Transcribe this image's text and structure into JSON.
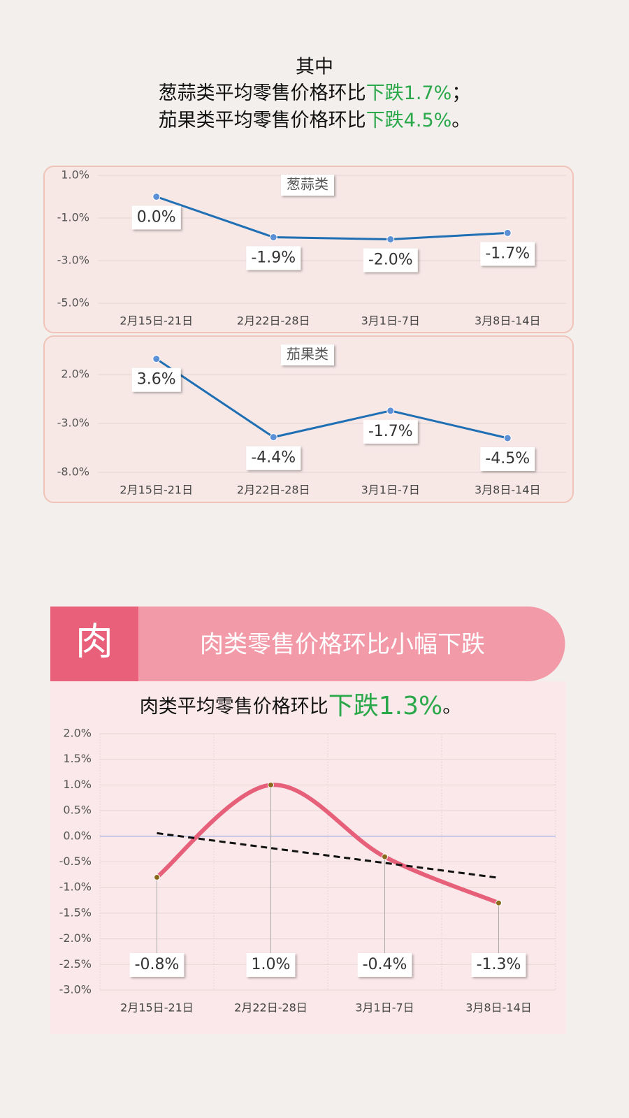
{
  "header": {
    "line0": "其中",
    "line1": [
      "葱蒜类平均零售价格环比",
      "下跌1.7%",
      "；"
    ],
    "line2": [
      "茄果类平均零售价格环比",
      "下跌4.5%",
      "。"
    ]
  },
  "banner": {
    "badge": "肉",
    "title": "肉类零售价格环比小幅下跌"
  },
  "subtitle": [
    "肉类平均零售价格环比",
    "下跌1.3%",
    "。"
  ],
  "chart_data": [
    {
      "type": "line",
      "title": "葱蒜类",
      "categories": [
        "2月15日-21日",
        "2月22日-28日",
        "3月1日-7日",
        "3月8日-14日"
      ],
      "values": [
        0.0,
        -1.9,
        -2.0,
        -1.7
      ],
      "value_labels": [
        "0.0%",
        "-1.9%",
        "-2.0%",
        "-1.7%"
      ],
      "color": "#1f6fb4",
      "ylim": [
        -5,
        1
      ],
      "yticks": [
        {
          "value": 1,
          "label": "1.0%"
        },
        {
          "value": -1,
          "label": "-1.0%"
        },
        {
          "value": -3,
          "label": "-3.0%"
        },
        {
          "value": -5,
          "label": "-5.0%"
        }
      ],
      "grid": true
    },
    {
      "type": "line",
      "title": "茄果类",
      "categories": [
        "2月15日-21日",
        "2月22日-28日",
        "3月1日-7日",
        "3月8日-14日"
      ],
      "values": [
        3.6,
        -4.4,
        -1.7,
        -4.5
      ],
      "value_labels": [
        "3.6%",
        "-4.4%",
        "-1.7%",
        "-4.5%"
      ],
      "color": "#1f6fb4",
      "ylim": [
        -8,
        5
      ],
      "yticks": [
        {
          "value": 2,
          "label": "2.0%"
        },
        {
          "value": -3,
          "label": "-3.0%"
        },
        {
          "value": -8,
          "label": "-8.0%"
        }
      ],
      "grid": true
    },
    {
      "type": "line",
      "categories": [
        "2月15日-21日",
        "2月22日-28日",
        "3月1日-7日",
        "3月8日-14日"
      ],
      "values": [
        -0.8,
        1.0,
        -0.4,
        -1.3
      ],
      "value_labels": [
        "-0.8%",
        "1.0%",
        "-0.4%",
        "-1.3%"
      ],
      "color": "#e6607a",
      "smooth": true,
      "trendline": true,
      "ylim": [
        -3,
        2
      ],
      "yticks": [
        {
          "value": 2,
          "label": "2.0%"
        },
        {
          "value": 1.5,
          "label": "1.5%"
        },
        {
          "value": 1,
          "label": "1.0%"
        },
        {
          "value": 0.5,
          "label": "0.5%"
        },
        {
          "value": 0,
          "label": "0.0%"
        },
        {
          "value": -0.5,
          "label": "-0.5%"
        },
        {
          "value": -1,
          "label": "-1.0%"
        },
        {
          "value": -1.5,
          "label": "-1.5%"
        },
        {
          "value": -2,
          "label": "-2.0%"
        },
        {
          "value": -2.5,
          "label": "-2.5%"
        },
        {
          "value": -3,
          "label": "-3.0%"
        }
      ],
      "grid": true
    }
  ]
}
